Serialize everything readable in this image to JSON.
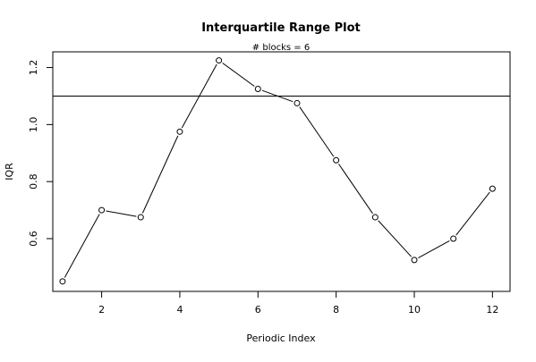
{
  "chart_data": {
    "type": "line",
    "title": "Interquartile Range Plot",
    "subtitle": "# blocks =  6",
    "xlabel": "Periodic Index",
    "ylabel": "IQR",
    "x": [
      1,
      2,
      3,
      4,
      5,
      6,
      7,
      8,
      9,
      10,
      11,
      12
    ],
    "series": [
      {
        "values": [
          0.45,
          0.7,
          0.675,
          0.975,
          1.225,
          1.125,
          1.075,
          0.875,
          0.675,
          0.525,
          0.6,
          0.775
        ]
      }
    ],
    "reference_line": 1.1,
    "xlim": [
      0.75,
      12.45
    ],
    "ylim": [
      0.415,
      1.255
    ],
    "x_ticks": [
      2,
      4,
      6,
      8,
      10,
      12
    ],
    "y_ticks": [
      0.6,
      0.8,
      1.0,
      1.2
    ],
    "y_tick_labels": [
      "0.6",
      "0.8",
      "1.0",
      "1.2"
    ],
    "marker": "open-circle",
    "grid": false,
    "line_color": "#000000",
    "background": "#ffffff"
  }
}
